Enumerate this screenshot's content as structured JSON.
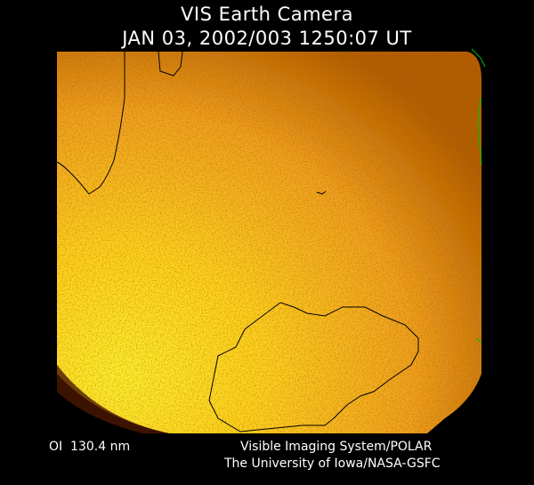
{
  "header": {
    "title": "VIS Earth Camera",
    "timestamp": "JAN 03, 2002/003 1250:07 UT"
  },
  "footer": {
    "filter": "OI  130.4 nm",
    "instrument": "Visible Imaging System/POLAR",
    "credit": "The University of Iowa/NASA-GSFC"
  },
  "colors": {
    "background": "#000000",
    "image_bright": "#ffe020",
    "image_mid": "#f0a020",
    "image_dark": "#8a3a00",
    "coastline": "#000000",
    "edge_coastline": "#00c000"
  }
}
